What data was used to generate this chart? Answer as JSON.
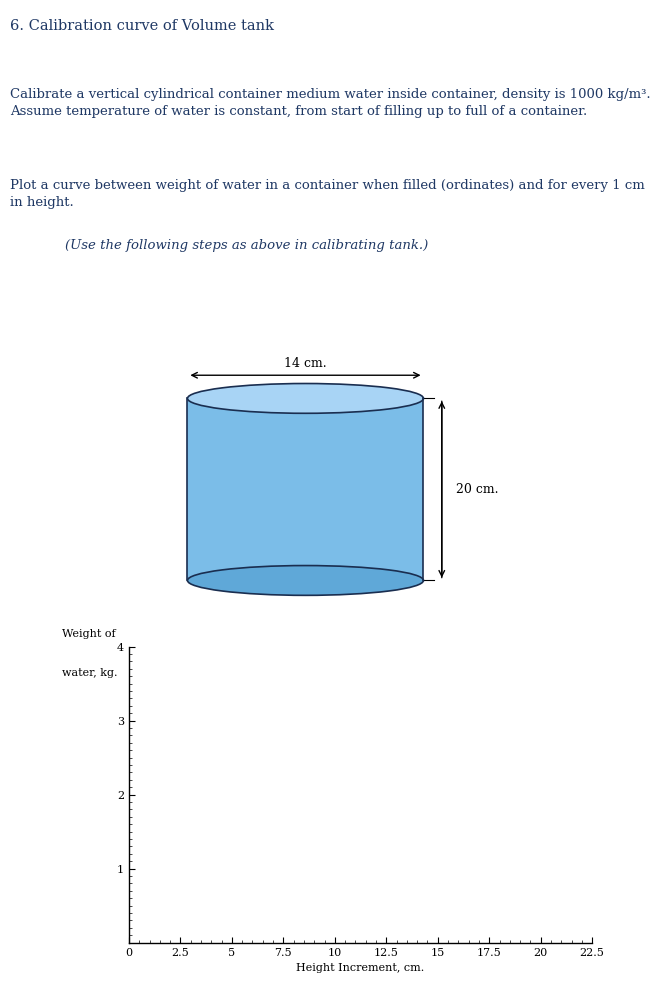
{
  "title": "6. Calibration curve of Volume tank",
  "para1_normal": "Calibrate a vertical cylindrical container medium water inside container, density is 1000 kg/m³.\nAssume temperature of water is constant, from start of filling up to full of a container.",
  "para2_normal": "Plot a curve between weight of water in a container when filled (ordinates) and for every 1 cm\nin height. ",
  "para2_italic": "(Use the following steps as above in calibrating tank.)",
  "cylinder_diameter_label": "14 cm.",
  "cylinder_height_label": "20 cm.",
  "cylinder_color_body": "#7BBDE8",
  "cylinder_color_top": "#A8D4F5",
  "cylinder_color_outline": "#1A2E50",
  "cylinder_color_shadow": "#5FA8D8",
  "plot_xlabel": "Height Increment, cm.",
  "plot_ylabel_line1": "Weight of",
  "plot_ylabel_line2": "water, kg.",
  "plot_xlim": [
    0,
    22.5
  ],
  "plot_ylim": [
    0,
    4
  ],
  "plot_xticks": [
    0,
    2.5,
    5.0,
    7.5,
    10.0,
    12.5,
    15.0,
    17.5,
    20.0,
    22.5
  ],
  "plot_yticks": [
    1,
    2,
    3,
    4
  ],
  "text_color_title": "#1F3864",
  "text_color_body": "#1F3864",
  "background_color": "#FFFFFF",
  "font_size_title": 10.5,
  "font_size_body": 9.5,
  "font_size_axis": 8,
  "font_size_cyl_label": 9
}
